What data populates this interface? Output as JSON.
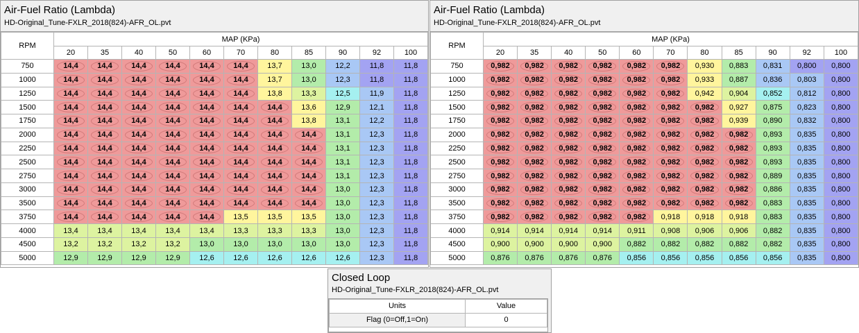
{
  "tables": [
    {
      "title": "Air-Fuel Ratio (Lambda)",
      "subtitle": "HD-Original_Tune-FXLR_2018(824)-AFR_OL.pvt",
      "row_header": "RPM",
      "col_header": "MAP (KPa)",
      "map_values": [
        "20",
        "35",
        "40",
        "50",
        "60",
        "70",
        "80",
        "85",
        "90",
        "92",
        "100"
      ],
      "rpm_values": [
        "750",
        "1000",
        "1250",
        "1500",
        "1750",
        "2000",
        "2250",
        "2500",
        "2750",
        "3000",
        "3500",
        "3750",
        "4000",
        "4500",
        "5000"
      ],
      "cells": [
        [
          "14,4",
          "14,4",
          "14,4",
          "14,4",
          "14,4",
          "14,4",
          "13,7",
          "13,0",
          "12,2",
          "11,8",
          "11,8"
        ],
        [
          "14,4",
          "14,4",
          "14,4",
          "14,4",
          "14,4",
          "14,4",
          "13,7",
          "13,0",
          "12,3",
          "11,8",
          "11,8"
        ],
        [
          "14,4",
          "14,4",
          "14,4",
          "14,4",
          "14,4",
          "14,4",
          "13,8",
          "13,3",
          "12,5",
          "11,9",
          "11,8"
        ],
        [
          "14,4",
          "14,4",
          "14,4",
          "14,4",
          "14,4",
          "14,4",
          "14,4",
          "13,6",
          "12,9",
          "12,1",
          "11,8"
        ],
        [
          "14,4",
          "14,4",
          "14,4",
          "14,4",
          "14,4",
          "14,4",
          "14,4",
          "13,8",
          "13,1",
          "12,2",
          "11,8"
        ],
        [
          "14,4",
          "14,4",
          "14,4",
          "14,4",
          "14,4",
          "14,4",
          "14,4",
          "14,4",
          "13,1",
          "12,3",
          "11,8"
        ],
        [
          "14,4",
          "14,4",
          "14,4",
          "14,4",
          "14,4",
          "14,4",
          "14,4",
          "14,4",
          "13,1",
          "12,3",
          "11,8"
        ],
        [
          "14,4",
          "14,4",
          "14,4",
          "14,4",
          "14,4",
          "14,4",
          "14,4",
          "14,4",
          "13,1",
          "12,3",
          "11,8"
        ],
        [
          "14,4",
          "14,4",
          "14,4",
          "14,4",
          "14,4",
          "14,4",
          "14,4",
          "14,4",
          "13,1",
          "12,3",
          "11,8"
        ],
        [
          "14,4",
          "14,4",
          "14,4",
          "14,4",
          "14,4",
          "14,4",
          "14,4",
          "14,4",
          "13,0",
          "12,3",
          "11,8"
        ],
        [
          "14,4",
          "14,4",
          "14,4",
          "14,4",
          "14,4",
          "14,4",
          "14,4",
          "14,4",
          "13,0",
          "12,3",
          "11,8"
        ],
        [
          "14,4",
          "14,4",
          "14,4",
          "14,4",
          "14,4",
          "13,5",
          "13,5",
          "13,5",
          "13,0",
          "12,3",
          "11,8"
        ],
        [
          "13,4",
          "13,4",
          "13,4",
          "13,4",
          "13,4",
          "13,3",
          "13,3",
          "13,3",
          "13,0",
          "12,3",
          "11,8"
        ],
        [
          "13,2",
          "13,2",
          "13,2",
          "13,2",
          "13,0",
          "13,0",
          "13,0",
          "13,0",
          "13,0",
          "12,3",
          "11,8"
        ],
        [
          "12,9",
          "12,9",
          "12,9",
          "12,9",
          "12,6",
          "12,6",
          "12,6",
          "12,6",
          "12,6",
          "12,3",
          "11,8"
        ]
      ]
    },
    {
      "title": "Air-Fuel Ratio (Lambda)",
      "subtitle": "HD-Original_Tune-FXLR_2018(824)-AFR_OL.pvt",
      "row_header": "RPM",
      "col_header": "MAP (KPa)",
      "map_values": [
        "20",
        "35",
        "40",
        "50",
        "60",
        "70",
        "80",
        "85",
        "90",
        "92",
        "100"
      ],
      "rpm_values": [
        "750",
        "1000",
        "1250",
        "1500",
        "1750",
        "2000",
        "2250",
        "2500",
        "2750",
        "3000",
        "3500",
        "3750",
        "4000",
        "4500",
        "5000"
      ],
      "cells": [
        [
          "0,982",
          "0,982",
          "0,982",
          "0,982",
          "0,982",
          "0,982",
          "0,930",
          "0,883",
          "0,831",
          "0,800",
          "0,800"
        ],
        [
          "0,982",
          "0,982",
          "0,982",
          "0,982",
          "0,982",
          "0,982",
          "0,933",
          "0,887",
          "0,836",
          "0,803",
          "0,800"
        ],
        [
          "0,982",
          "0,982",
          "0,982",
          "0,982",
          "0,982",
          "0,982",
          "0,942",
          "0,904",
          "0,852",
          "0,812",
          "0,800"
        ],
        [
          "0,982",
          "0,982",
          "0,982",
          "0,982",
          "0,982",
          "0,982",
          "0,982",
          "0,927",
          "0,875",
          "0,823",
          "0,800"
        ],
        [
          "0,982",
          "0,982",
          "0,982",
          "0,982",
          "0,982",
          "0,982",
          "0,982",
          "0,939",
          "0,890",
          "0,832",
          "0,800"
        ],
        [
          "0,982",
          "0,982",
          "0,982",
          "0,982",
          "0,982",
          "0,982",
          "0,982",
          "0,982",
          "0,893",
          "0,835",
          "0,800"
        ],
        [
          "0,982",
          "0,982",
          "0,982",
          "0,982",
          "0,982",
          "0,982",
          "0,982",
          "0,982",
          "0,893",
          "0,835",
          "0,800"
        ],
        [
          "0,982",
          "0,982",
          "0,982",
          "0,982",
          "0,982",
          "0,982",
          "0,982",
          "0,982",
          "0,893",
          "0,835",
          "0,800"
        ],
        [
          "0,982",
          "0,982",
          "0,982",
          "0,982",
          "0,982",
          "0,982",
          "0,982",
          "0,982",
          "0,889",
          "0,835",
          "0,800"
        ],
        [
          "0,982",
          "0,982",
          "0,982",
          "0,982",
          "0,982",
          "0,982",
          "0,982",
          "0,982",
          "0,886",
          "0,835",
          "0,800"
        ],
        [
          "0,982",
          "0,982",
          "0,982",
          "0,982",
          "0,982",
          "0,982",
          "0,982",
          "0,982",
          "0,883",
          "0,835",
          "0,800"
        ],
        [
          "0,982",
          "0,982",
          "0,982",
          "0,982",
          "0,982",
          "0,918",
          "0,918",
          "0,918",
          "0,883",
          "0,835",
          "0,800"
        ],
        [
          "0,914",
          "0,914",
          "0,914",
          "0,914",
          "0,911",
          "0,908",
          "0,906",
          "0,906",
          "0,882",
          "0,835",
          "0,800"
        ],
        [
          "0,900",
          "0,900",
          "0,900",
          "0,900",
          "0,882",
          "0,882",
          "0,882",
          "0,882",
          "0,882",
          "0,835",
          "0,800"
        ],
        [
          "0,876",
          "0,876",
          "0,876",
          "0,876",
          "0,856",
          "0,856",
          "0,856",
          "0,856",
          "0,856",
          "0,835",
          "0,800"
        ]
      ]
    }
  ],
  "closed_loop": {
    "title": "Closed Loop",
    "subtitle": "HD-Original_Tune-FXLR_2018(824)-AFR_OL.pvt",
    "col_units": "Units",
    "col_value": "Value",
    "row_label": "Flag (0=Off,1=On)",
    "row_value": "0"
  },
  "colors": {
    "red": "#ef9a9a",
    "yellow": "#fff59d",
    "lime": "#ddf3a0",
    "green": "#b3ecaa",
    "cyan": "#a5f0f0",
    "blue": "#a9c8f5",
    "purple": "#a3a3f2"
  }
}
